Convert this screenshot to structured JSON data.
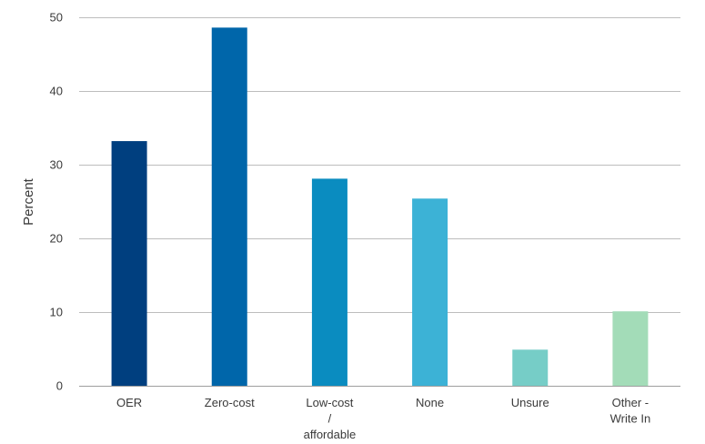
{
  "chart_data": {
    "type": "bar",
    "title": "",
    "xlabel": "",
    "ylabel": "Percent",
    "ylim": [
      0,
      50
    ],
    "yticks": [
      0,
      10,
      20,
      30,
      40,
      50
    ],
    "grid": true,
    "legend": "none",
    "categories": [
      [
        "OER"
      ],
      [
        "Zero-cost"
      ],
      [
        "Low-cost",
        "/",
        "affordable"
      ],
      [
        "None"
      ],
      [
        "Unsure"
      ],
      [
        "Other -",
        "Write In"
      ]
    ],
    "values": [
      33.2,
      48.6,
      28.1,
      25.4,
      4.9,
      10.1
    ],
    "colors": [
      "#003f7f",
      "#0066aa",
      "#0a8cc0",
      "#3cb2d6",
      "#76cdc7",
      "#a3dcb8"
    ]
  }
}
